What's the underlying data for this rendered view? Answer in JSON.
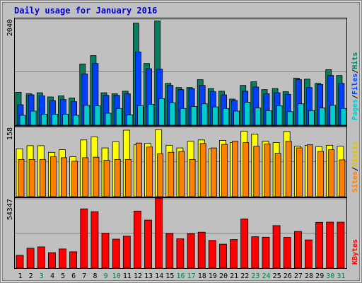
{
  "chart_data": {
    "type": "bar",
    "title": "Daily usage for January 2016",
    "categories": [
      "1",
      "2",
      "3",
      "4",
      "5",
      "6",
      "7",
      "8",
      "9",
      "10",
      "11",
      "12",
      "13",
      "14",
      "15",
      "16",
      "17",
      "18",
      "19",
      "20",
      "21",
      "22",
      "23",
      "24",
      "25",
      "26",
      "27",
      "28",
      "29",
      "30",
      "31"
    ],
    "weekend_days": [
      "3",
      "9",
      "10",
      "16",
      "17",
      "23",
      "24",
      "30",
      "31"
    ],
    "colors": {
      "background": "#c0c0c0",
      "title": "#0000cc",
      "pages": "#00cccc",
      "files": "#0040ff",
      "hits": "#008060",
      "visits": "#ffff00",
      "sites": "#ff8000",
      "kbytes": "#ff0000",
      "weekend_label": "#008040",
      "weekday_label": "#000000"
    },
    "panels": [
      {
        "id": "hits",
        "max_label": "2040",
        "ylim": [
          0,
          2040
        ],
        "legend": [
          "Pages",
          "Files",
          "Hits"
        ],
        "series": [
          {
            "name": "Hits",
            "values": [
              630,
              600,
              620,
              540,
              560,
              520,
              1170,
              1330,
              620,
              600,
              650,
              1950,
              1180,
              1990,
              800,
              720,
              720,
              870,
              700,
              650,
              500,
              760,
              830,
              680,
              700,
              640,
              900,
              880,
              800,
              1060,
              950
            ]
          },
          {
            "name": "Files",
            "values": [
              390,
              580,
              560,
              470,
              490,
              450,
              980,
              1180,
              570,
              570,
              600,
              1400,
              1080,
              1070,
              760,
              680,
              700,
              760,
              640,
              580,
              470,
              650,
              730,
              600,
              620,
              590,
              870,
              720,
              780,
              950,
              800
            ]
          },
          {
            "name": "Pages",
            "values": [
              190,
              270,
              210,
              210,
              210,
              190,
              380,
              370,
              230,
              320,
              200,
              370,
              400,
              510,
              430,
              320,
              360,
              410,
              350,
              320,
              270,
              440,
              330,
              280,
              370,
              260,
              410,
              280,
              330,
              380,
              320
            ]
          }
        ]
      },
      {
        "id": "visits",
        "max_label": "158",
        "ylim": [
          0,
          158
        ],
        "legend": [
          "Sites",
          "Visits"
        ],
        "series": [
          {
            "name": "Visits",
            "values": [
              108,
              115,
              115,
              100,
              106,
              90,
              128,
              135,
              110,
              124,
              150,
              117,
              120,
              151,
              116,
              110,
              125,
              128,
              108,
              127,
              122,
              148,
              141,
              125,
              122,
              147,
              114,
              116,
              113,
              116,
              114
            ]
          },
          {
            "name": "Sites",
            "values": [
              84,
              84,
              84,
              90,
              88,
              80,
              88,
              89,
              82,
              84,
              84,
              121,
              112,
              97,
              100,
              102,
              84,
              120,
              110,
              118,
              125,
              122,
              114,
              119,
              98,
              125,
              110,
              117,
              102,
              106,
              83
            ]
          }
        ]
      },
      {
        "id": "kbytes",
        "max_label": "54347",
        "ylim": [
          0,
          54347
        ],
        "legend": [
          "KBytes"
        ],
        "series": [
          {
            "name": "KBytes",
            "values": [
              10000,
              15500,
              16500,
              12000,
              14900,
              12700,
              46000,
              43800,
              27100,
              22500,
              24800,
              44300,
              37300,
              54300,
              26900,
              22800,
              26800,
              27900,
              21500,
              18600,
              22200,
              38200,
              24400,
              24000,
              33000,
              23800,
              28500,
              21900,
              35500,
              35700,
              35700
            ]
          }
        ]
      }
    ]
  }
}
